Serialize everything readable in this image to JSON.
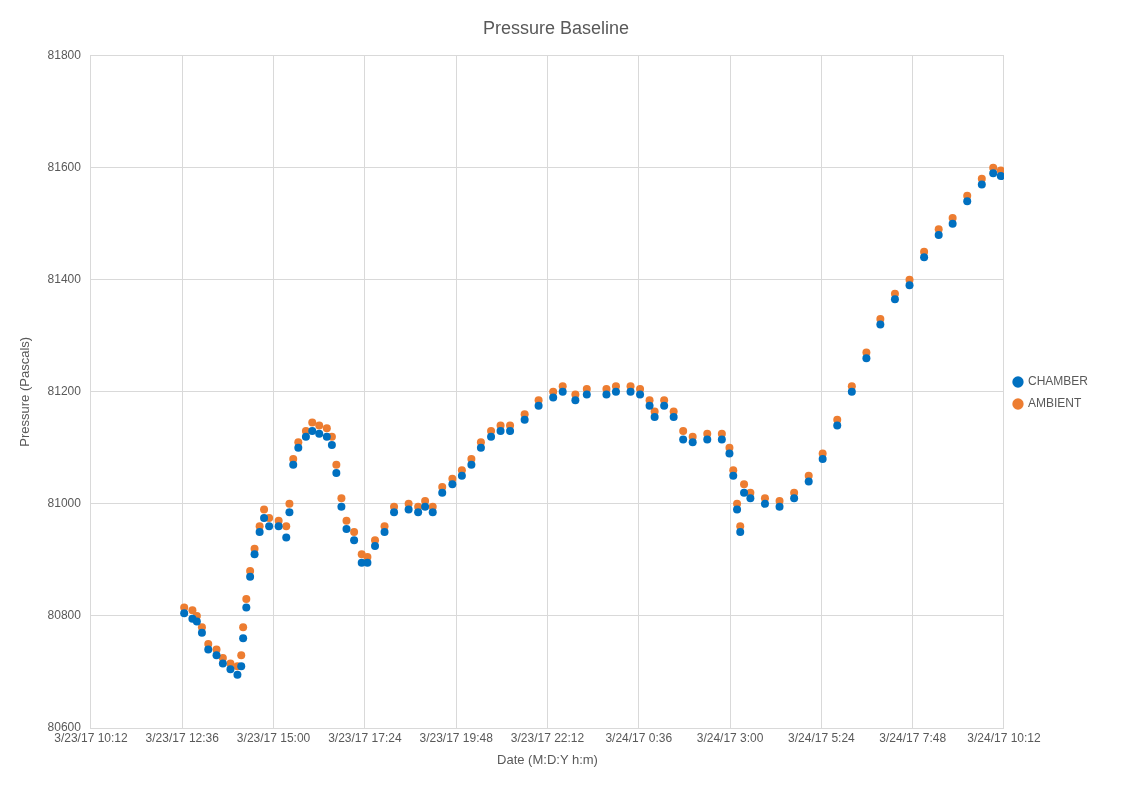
{
  "chart_data": {
    "type": "scatter",
    "title": "Pressure Baseline",
    "xlabel": "Date (M:D:Y h:m)",
    "ylabel": "Pressure (Pascals)",
    "x": [
      "--03-23T12:39",
      "--03-23T12:52",
      "--03-23T12:59",
      "--03-23T13:07",
      "--03-23T13:17",
      "--03-23T13:30",
      "--03-23T13:40",
      "--03-23T13:52",
      "--03-23T14:03",
      "--03-23T14:09",
      "--03-23T14:12",
      "--03-23T14:17",
      "--03-23T14:23",
      "--03-23T14:30",
      "--03-23T14:38",
      "--03-23T14:45",
      "--03-23T14:53",
      "--03-23T15:08",
      "--03-23T15:20",
      "--03-23T15:25",
      "--03-23T15:31",
      "--03-23T15:39",
      "--03-23T15:51",
      "--03-23T16:01",
      "--03-23T16:12",
      "--03-23T16:24",
      "--03-23T16:32",
      "--03-23T16:39",
      "--03-23T16:47",
      "--03-23T16:55",
      "--03-23T17:07",
      "--03-23T17:19",
      "--03-23T17:28",
      "--03-23T17:40",
      "--03-23T17:55",
      "--03-23T18:10",
      "--03-23T18:33",
      "--03-23T18:48",
      "--03-23T18:59",
      "--03-23T19:11",
      "--03-23T19:26",
      "--03-23T19:42",
      "--03-23T19:57",
      "--03-23T20:12",
      "--03-23T20:27",
      "--03-23T20:43",
      "--03-23T20:58",
      "--03-23T21:13",
      "--03-23T21:36",
      "--03-23T21:58",
      "--03-23T22:21",
      "--03-23T22:36",
      "--03-23T22:56",
      "--03-23T23:14",
      "--03-23T23:45",
      "--03-24T00:00",
      "--03-24T00:23",
      "--03-24T00:38",
      "--03-24T00:53",
      "--03-24T01:01",
      "--03-24T01:16",
      "--03-24T01:31",
      "--03-24T01:46",
      "--03-24T02:01",
      "--03-24T02:24",
      "--03-24T02:47",
      "--03-24T02:59",
      "--03-24T03:05",
      "--03-24T03:11",
      "--03-24T03:16",
      "--03-24T03:22",
      "--03-24T03:32",
      "--03-24T03:55",
      "--03-24T04:18",
      "--03-24T04:41",
      "--03-24T05:04",
      "--03-24T05:26",
      "--03-24T05:49",
      "--03-24T06:12",
      "--03-24T06:35",
      "--03-24T06:57",
      "--03-24T07:20",
      "--03-24T07:43",
      "--03-24T08:06",
      "--03-24T08:29",
      "--03-24T08:51",
      "--03-24T09:14",
      "--03-24T09:37",
      "--03-24T09:55",
      "--03-24T10:07"
    ],
    "series": [
      {
        "name": "CHAMBER",
        "color": "#0070c0",
        "values": [
          80805,
          80795,
          80790,
          80770,
          80740,
          80730,
          80715,
          80705,
          80695,
          80710,
          80760,
          80815,
          80870,
          80910,
          80950,
          80975,
          80960,
          80960,
          80940,
          80985,
          81070,
          81100,
          81120,
          81130,
          81125,
          81120,
          81105,
          81055,
          80995,
          80955,
          80935,
          80895,
          80895,
          80925,
          80950,
          80985,
          80990,
          80985,
          80995,
          80985,
          81020,
          81035,
          81050,
          81070,
          81100,
          81120,
          81130,
          81130,
          81150,
          81175,
          81190,
          81200,
          81185,
          81195,
          81195,
          81200,
          81200,
          81195,
          81175,
          81155,
          81175,
          81155,
          81115,
          81110,
          81115,
          81115,
          81090,
          81050,
          80990,
          80950,
          81020,
          81010,
          81000,
          80995,
          81010,
          81040,
          81080,
          81140,
          81200,
          81260,
          81320,
          81365,
          81390,
          81440,
          81480,
          81500,
          81540,
          81570,
          81590,
          81585
        ]
      },
      {
        "name": "AMBIENT",
        "color": "#ed7d31",
        "values": [
          80815,
          80810,
          80800,
          80780,
          80750,
          80740,
          80725,
          80715,
          80710,
          80730,
          80780,
          80830,
          80880,
          80920,
          80960,
          80990,
          80975,
          80970,
          80960,
          81000,
          81080,
          81110,
          81130,
          81145,
          81140,
          81135,
          81120,
          81070,
          81010,
          80970,
          80950,
          80910,
          80905,
          80935,
          80960,
          80995,
          81000,
          80995,
          81005,
          80995,
          81030,
          81045,
          81060,
          81080,
          81110,
          81130,
          81140,
          81140,
          81160,
          81185,
          81200,
          81210,
          81195,
          81205,
          81205,
          81210,
          81210,
          81205,
          81185,
          81165,
          81185,
          81165,
          81130,
          81120,
          81125,
          81125,
          81100,
          81060,
          81000,
          80960,
          81035,
          81020,
          81010,
          81005,
          81020,
          81050,
          81090,
          81150,
          81210,
          81270,
          81330,
          81375,
          81400,
          81450,
          81490,
          81510,
          81550,
          81580,
          81600,
          81595
        ]
      }
    ],
    "xlim": [
      "--03-23T10:12",
      "--03-24T10:12"
    ],
    "xticks": [
      {
        "value": "--03-23T10:12",
        "label": "3/23/17 10:12"
      },
      {
        "value": "--03-23T12:36",
        "label": "3/23/17 12:36"
      },
      {
        "value": "--03-23T15:00",
        "label": "3/23/17 15:00"
      },
      {
        "value": "--03-23T17:24",
        "label": "3/23/17 17:24"
      },
      {
        "value": "--03-23T19:48",
        "label": "3/23/17 19:48"
      },
      {
        "value": "--03-23T22:12",
        "label": "3/23/17 22:12"
      },
      {
        "value": "--03-24T00:36",
        "label": "3/24/17 0:36"
      },
      {
        "value": "--03-24T03:00",
        "label": "3/24/17 3:00"
      },
      {
        "value": "--03-24T05:24",
        "label": "3/24/17 5:24"
      },
      {
        "value": "--03-24T07:48",
        "label": "3/24/17 7:48"
      },
      {
        "value": "--03-24T10:12",
        "label": "3/24/17 10:12"
      }
    ],
    "ylim": [
      80600,
      81800
    ],
    "yticks": [
      80600,
      80800,
      81000,
      81200,
      81400,
      81600,
      81800
    ],
    "grid": true,
    "legend": "right",
    "marker": "circle"
  }
}
